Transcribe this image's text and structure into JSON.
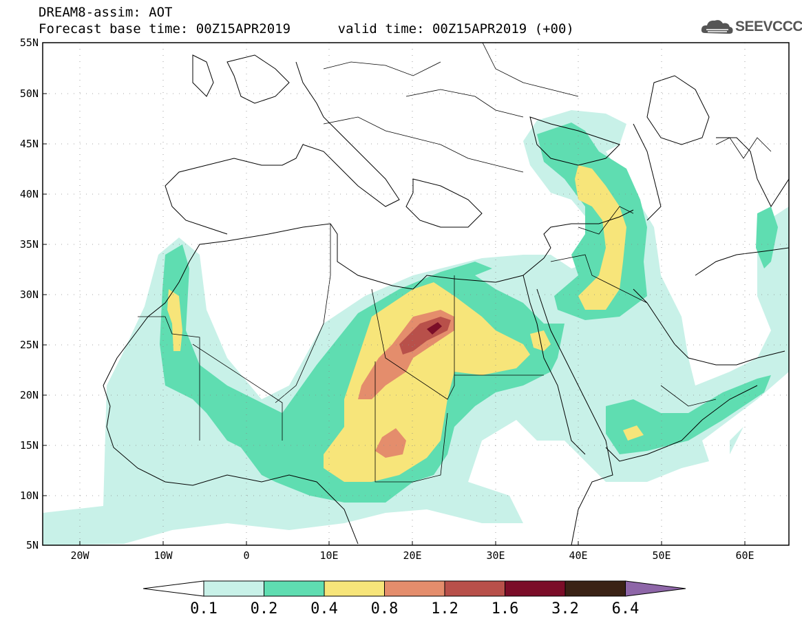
{
  "header": {
    "title_line1": "DREAM8-assim: AOT",
    "title_line2": "Forecast base time: 00Z15APR2019      valid time: 00Z15APR2019 (+00)"
  },
  "logo": {
    "text": "SEEVCCC",
    "icon": "cloud-logo-icon"
  },
  "map": {
    "lat_labels": [
      "55N",
      "50N",
      "45N",
      "40N",
      "35N",
      "30N",
      "25N",
      "20N",
      "15N",
      "10N",
      "5N"
    ],
    "lon_labels": [
      "20W",
      "10W",
      "0",
      "10E",
      "20E",
      "30E",
      "40E",
      "50E",
      "60E"
    ],
    "lat_range": [
      5,
      55
    ],
    "lon_range": [
      -25,
      65
    ],
    "variable": "AOT"
  },
  "colorbar": {
    "levels": [
      "0.1",
      "0.2",
      "0.4",
      "0.8",
      "1.2",
      "1.6",
      "3.2",
      "6.4"
    ],
    "colors": [
      "#ffffff",
      "#c8f1e8",
      "#5fddb1",
      "#f7e57a",
      "#e48d6c",
      "#b8504a",
      "#7b0d28",
      "#3a2215",
      "#8e66a8"
    ]
  },
  "colors": {
    "aot_01_02": "#c8f1e8",
    "aot_02_04": "#5fddb1",
    "aot_04_08": "#f7e57a",
    "aot_08_12": "#e48d6c",
    "aot_12_16": "#b8504a",
    "aot_16_32": "#7b0d28"
  }
}
